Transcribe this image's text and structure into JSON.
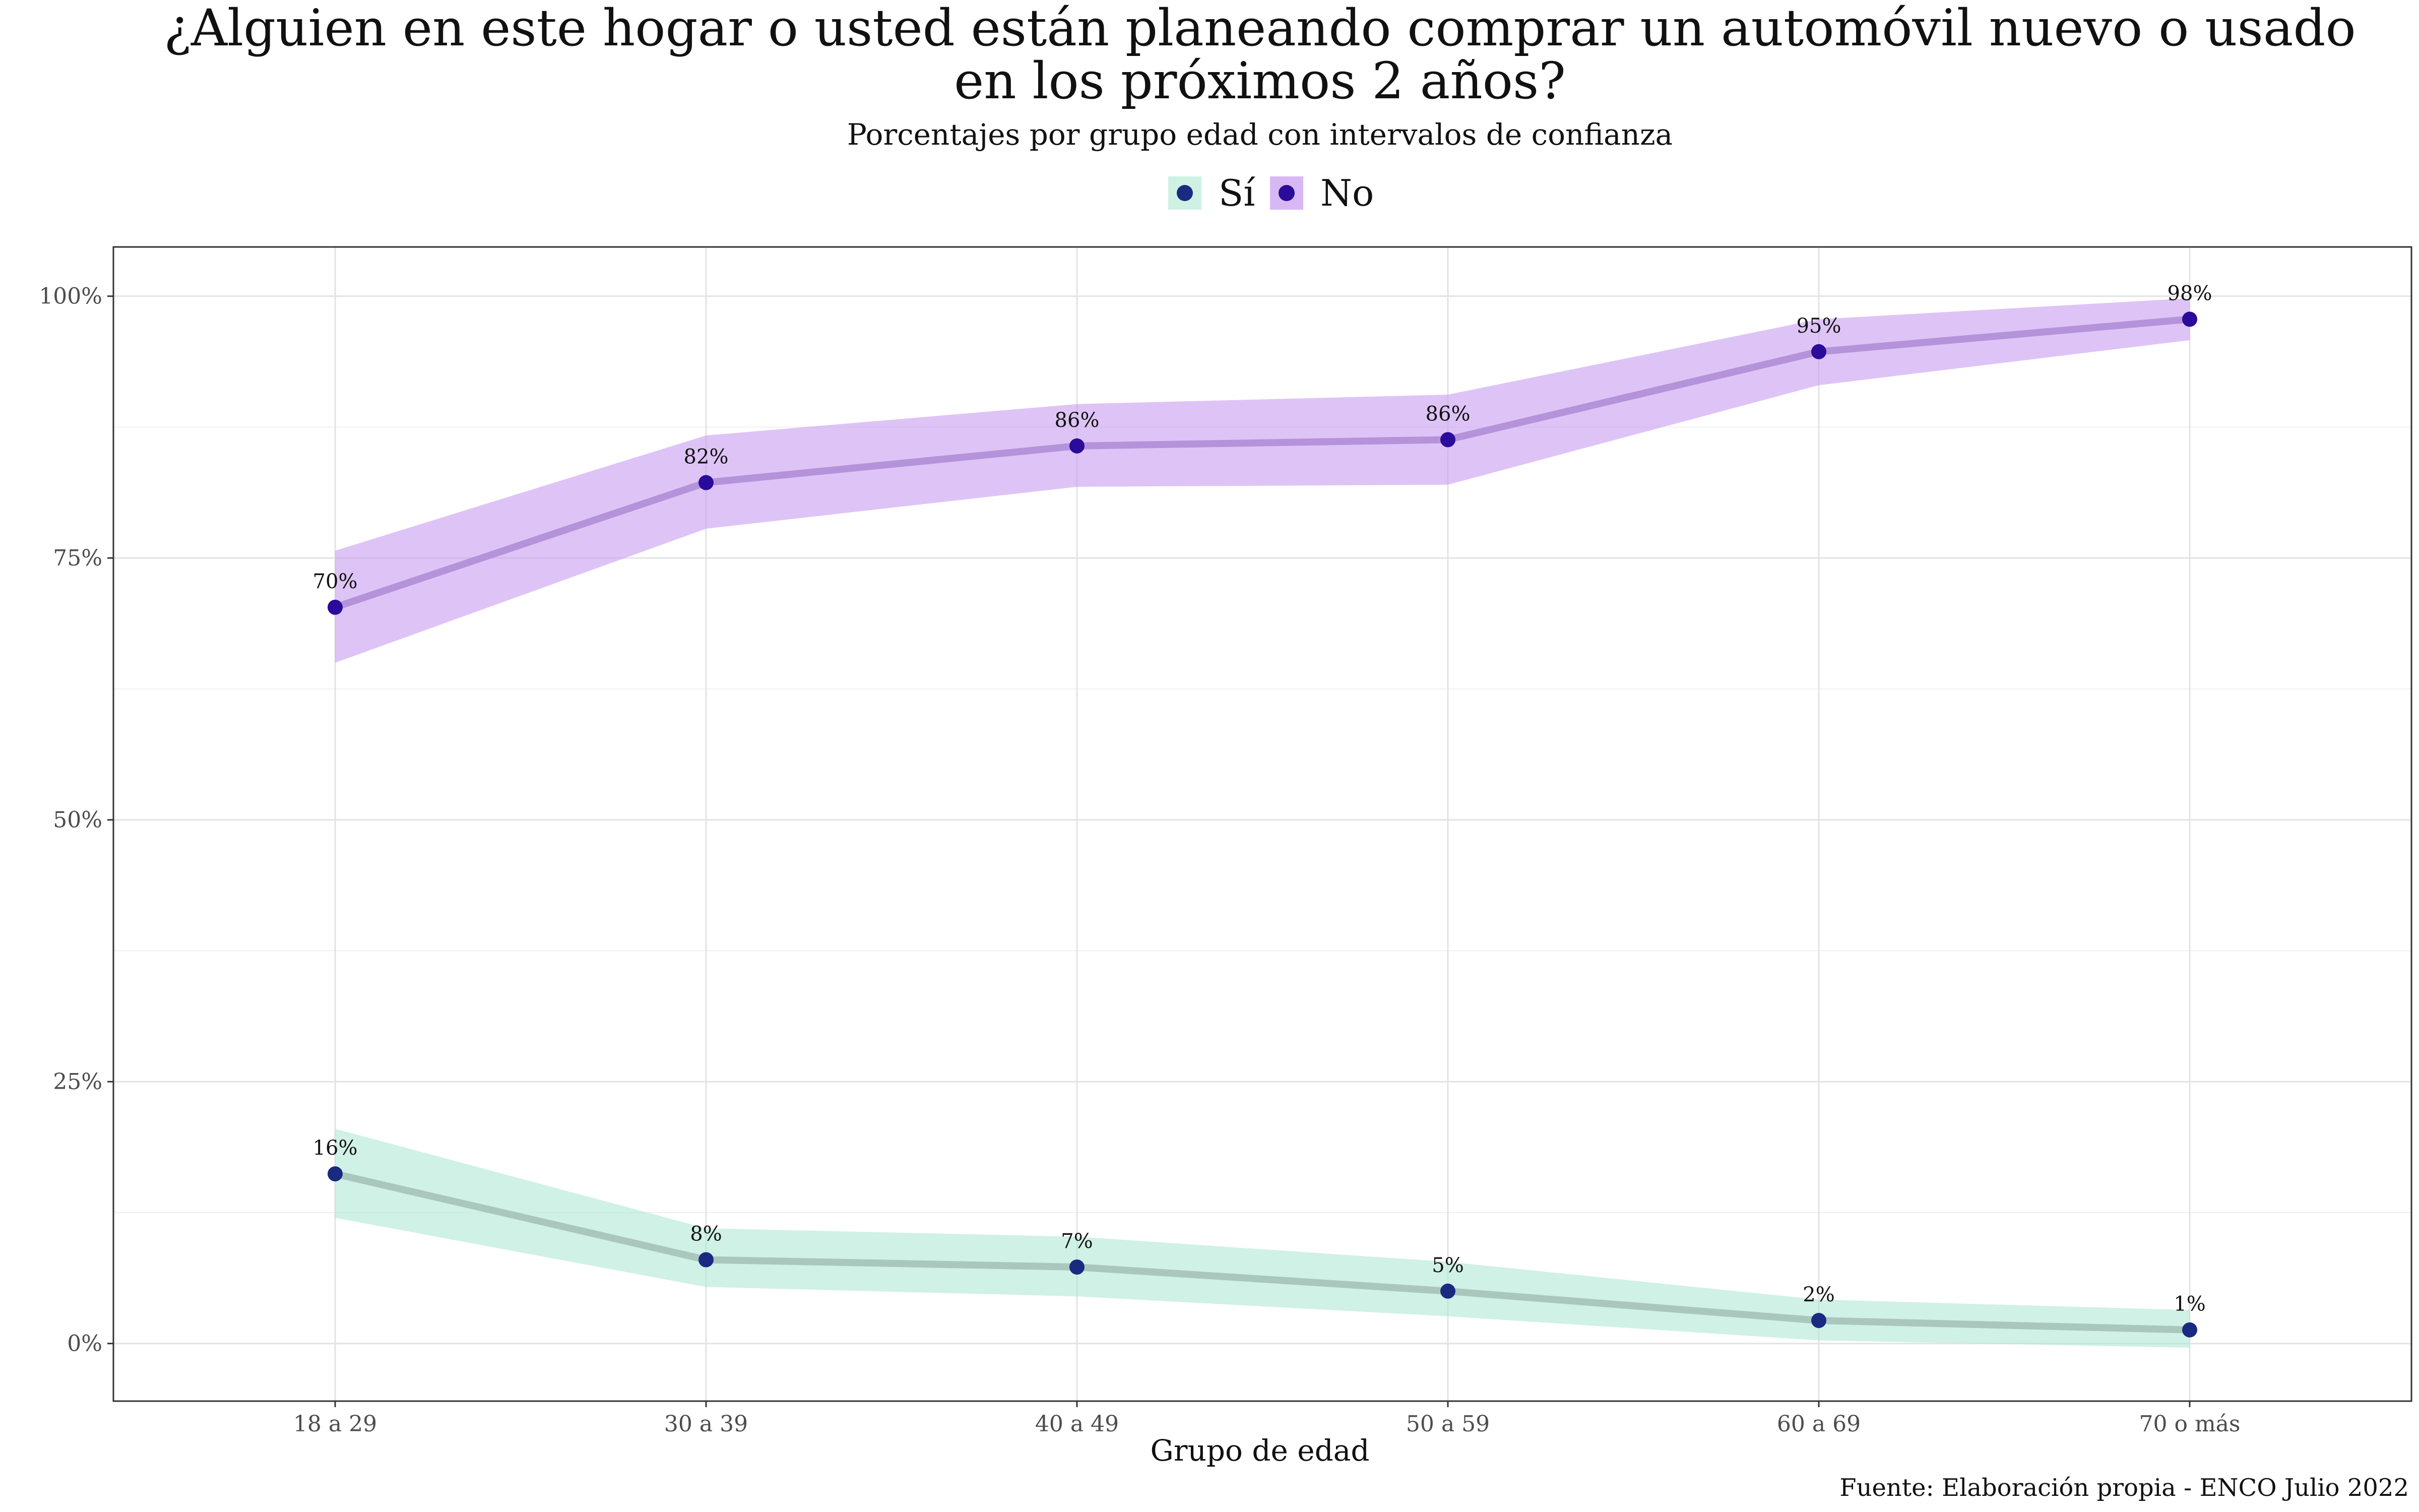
{
  "chart_data": {
    "type": "line",
    "title_lines": [
      "¿Alguien en este hogar o usted están planeando comprar un automóvil nuevo o usado",
      "en los próximos 2 años?"
    ],
    "subtitle": "Porcentajes por grupo edad con intervalos de confianza",
    "xlabel": "Grupo de edad",
    "ylabel": "",
    "caption": "Fuente: Elaboración propia - ENCO Julio 2022",
    "categories": [
      "18 a 29",
      "30 a 39",
      "40 a 49",
      "50 a 59",
      "60 a 69",
      "70 o más"
    ],
    "ylim": [
      -5.5,
      104.7
    ],
    "yticks": [
      0,
      25,
      50,
      75,
      100
    ],
    "ytick_labels": [
      "0%",
      "25%",
      "50%",
      "75%",
      "100%"
    ],
    "grid": true,
    "legend_position": "top",
    "series": [
      {
        "name": "Sí",
        "values": [
          16.2,
          8.0,
          7.3,
          5.0,
          2.2,
          1.3
        ],
        "lower": [
          12.0,
          5.4,
          4.5,
          2.6,
          0.3,
          -0.4
        ],
        "upper": [
          20.5,
          11.0,
          10.2,
          7.8,
          4.2,
          3.2
        ],
        "labels": [
          "16%",
          "8%",
          "7%",
          "5%",
          "2%",
          "1%"
        ],
        "ribbon_color": "#b3e9d5",
        "line_color": "#a8c4bc",
        "point_color": "#1a2a80"
      },
      {
        "name": "No",
        "values": [
          70.3,
          82.2,
          85.7,
          86.3,
          94.7,
          97.8
        ],
        "lower": [
          65.0,
          77.8,
          81.8,
          82.0,
          91.5,
          95.8
        ],
        "upper": [
          75.7,
          86.7,
          89.7,
          90.6,
          97.8,
          99.8
        ],
        "labels": [
          "70%",
          "82%",
          "86%",
          "86%",
          "95%",
          "98%"
        ],
        "ribbon_color": "#c9a0f0",
        "line_color": "#b190d8",
        "point_color": "#2a0b9a"
      }
    ]
  }
}
